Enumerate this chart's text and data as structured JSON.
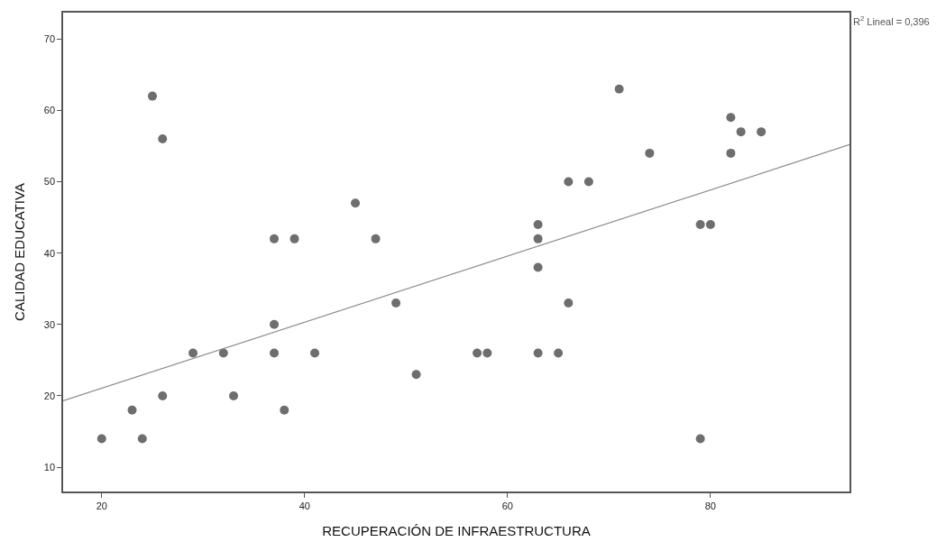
{
  "chart_data": {
    "type": "scatter",
    "xlabel": "RECUPERACIÓN DE INFRAESTRUCTURA",
    "ylabel": "CALIDAD EDUCATIVA",
    "xlim": [
      16.2,
      93.7
    ],
    "ylim": [
      6.6,
      73.7
    ],
    "xticks": [
      20,
      40,
      60,
      80
    ],
    "yticks": [
      10,
      20,
      30,
      40,
      50,
      60,
      70
    ],
    "grid": false,
    "series": [
      {
        "marker": "circle",
        "color": "#6e6e6e",
        "x": [
          25,
          26,
          45,
          37,
          39,
          47,
          49,
          37,
          29,
          32,
          37,
          41,
          51,
          26,
          33,
          23,
          38,
          20,
          24,
          71,
          82,
          83,
          85,
          74,
          82,
          66,
          68,
          63,
          63,
          63,
          66,
          57,
          58,
          63,
          65,
          79,
          80,
          79
        ],
        "values": [
          62,
          56,
          47,
          42,
          42,
          42,
          33,
          30,
          26,
          26,
          26,
          26,
          23,
          20,
          20,
          18,
          18,
          14,
          14,
          63,
          59,
          57,
          57,
          54,
          54,
          50,
          50,
          44,
          42,
          38,
          33,
          26,
          26,
          26,
          26,
          44,
          44,
          14
        ]
      },
      {
        "type": "line",
        "color": "#8c8c8c",
        "x": [
          16.2,
          93.7
        ],
        "values": [
          19.3,
          55.2
        ]
      }
    ],
    "annotations": [
      "R$^{2}$ Lineal = 0,396"
    ]
  }
}
